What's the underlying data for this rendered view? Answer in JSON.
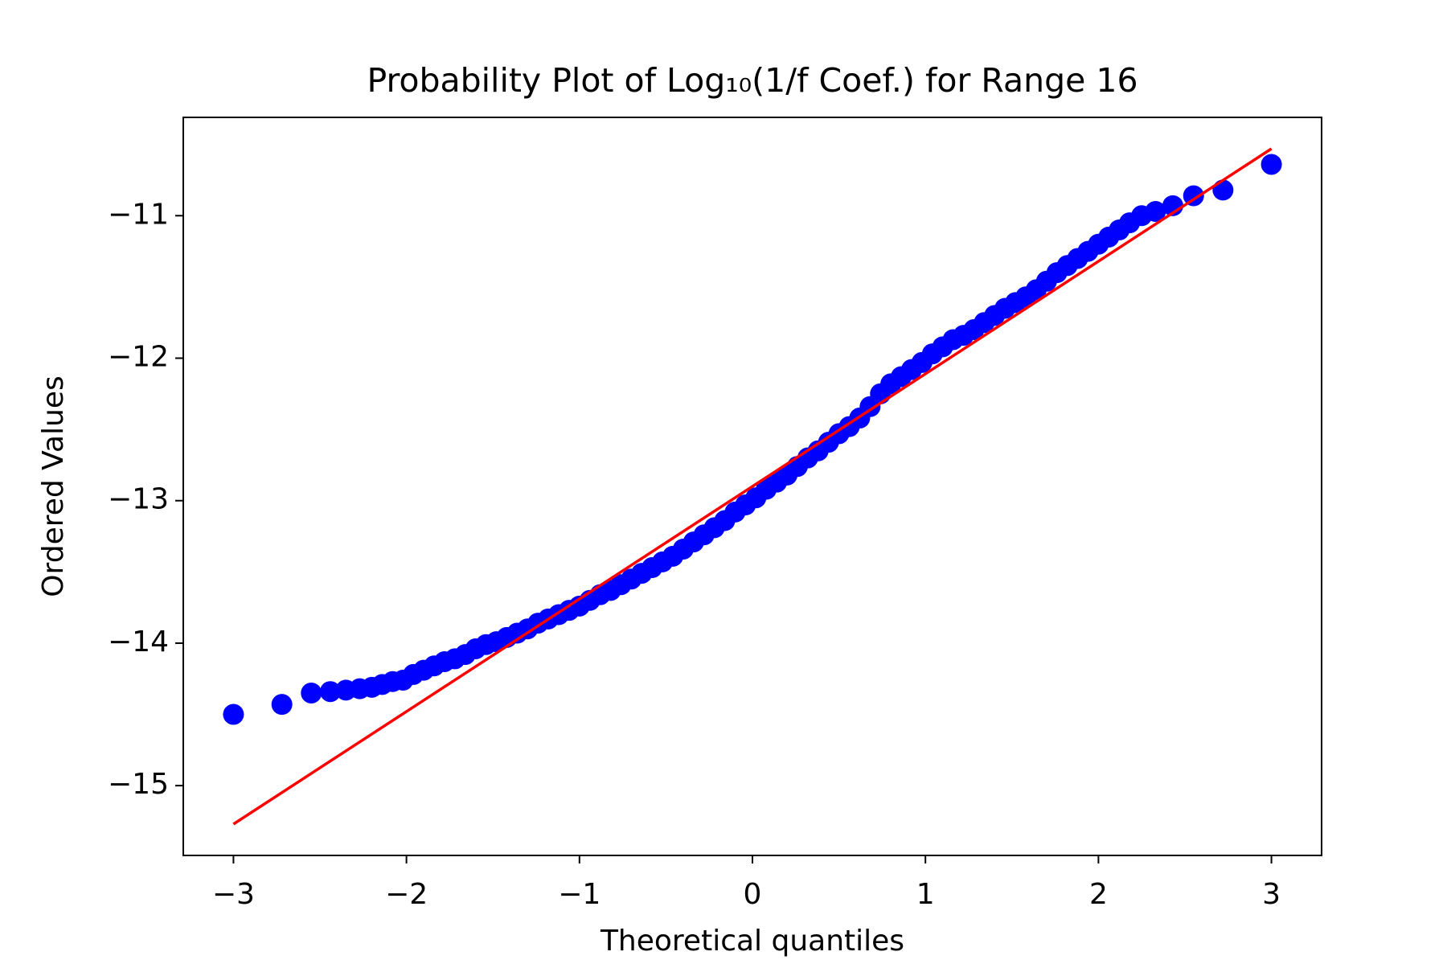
{
  "chart_data": {
    "type": "scatter",
    "title": "Probability Plot of Log₁₀(1/f Coef.) for Range 16",
    "xlabel": "Theoretical quantiles",
    "ylabel": "Ordered Values",
    "xlim": [
      -3.29,
      3.29
    ],
    "ylim": [
      -15.49,
      -10.31
    ],
    "xticks": [
      {
        "value": -3,
        "label": "−3"
      },
      {
        "value": -2,
        "label": "−2"
      },
      {
        "value": -1,
        "label": "−1"
      },
      0,
      1,
      2,
      3
    ],
    "yticks": [
      {
        "value": -15,
        "label": "−15"
      },
      {
        "value": -14,
        "label": "−14"
      },
      {
        "value": -13,
        "label": "−13"
      },
      {
        "value": -12,
        "label": "−12"
      },
      {
        "value": -11,
        "label": "−11"
      }
    ],
    "series": [
      {
        "color": "#0000ff",
        "mode": "markers",
        "x": [
          -3.0,
          -2.72,
          -2.55,
          -2.44,
          -2.35,
          -2.27,
          -2.2,
          -2.14,
          -2.08,
          -2.02,
          -1.96,
          -1.9,
          -1.84,
          -1.78,
          -1.72,
          -1.66,
          -1.6,
          -1.54,
          -1.48,
          -1.42,
          -1.36,
          -1.3,
          -1.24,
          -1.18,
          -1.12,
          -1.06,
          -1.0,
          -0.94,
          -0.88,
          -0.82,
          -0.76,
          -0.7,
          -0.64,
          -0.58,
          -0.52,
          -0.46,
          -0.4,
          -0.34,
          -0.28,
          -0.22,
          -0.16,
          -0.1,
          -0.04,
          0.02,
          0.08,
          0.14,
          0.2,
          0.26,
          0.32,
          0.38,
          0.44,
          0.5,
          0.56,
          0.62,
          0.68,
          0.74,
          0.8,
          0.86,
          0.92,
          0.98,
          1.04,
          1.1,
          1.16,
          1.22,
          1.28,
          1.34,
          1.4,
          1.46,
          1.52,
          1.58,
          1.64,
          1.7,
          1.76,
          1.82,
          1.88,
          1.94,
          2.0,
          2.06,
          2.12,
          2.18,
          2.25,
          2.33,
          2.43,
          2.55,
          2.72,
          3.0
        ],
        "values": [
          -14.5,
          -14.43,
          -14.35,
          -14.34,
          -14.33,
          -14.32,
          -14.31,
          -14.29,
          -14.27,
          -14.26,
          -14.22,
          -14.19,
          -14.16,
          -14.13,
          -14.11,
          -14.08,
          -14.04,
          -14.01,
          -13.99,
          -13.96,
          -13.93,
          -13.9,
          -13.86,
          -13.83,
          -13.8,
          -13.77,
          -13.74,
          -13.7,
          -13.66,
          -13.63,
          -13.59,
          -13.55,
          -13.51,
          -13.47,
          -13.43,
          -13.39,
          -13.34,
          -13.29,
          -13.24,
          -13.19,
          -13.14,
          -13.08,
          -13.03,
          -12.98,
          -12.92,
          -12.87,
          -12.82,
          -12.76,
          -12.7,
          -12.65,
          -12.59,
          -12.53,
          -12.48,
          -12.42,
          -12.34,
          -12.25,
          -12.18,
          -12.13,
          -12.08,
          -12.03,
          -11.97,
          -11.92,
          -11.87,
          -11.84,
          -11.8,
          -11.75,
          -11.7,
          -11.65,
          -11.61,
          -11.57,
          -11.52,
          -11.46,
          -11.4,
          -11.35,
          -11.3,
          -11.25,
          -11.2,
          -11.15,
          -11.1,
          -11.05,
          -11.0,
          -10.97,
          -10.93,
          -10.86,
          -10.82,
          -10.64
        ]
      },
      {
        "color": "#ff0000",
        "mode": "line",
        "x": [
          -3,
          3
        ],
        "values": [
          -15.27,
          -10.53
        ]
      }
    ]
  }
}
